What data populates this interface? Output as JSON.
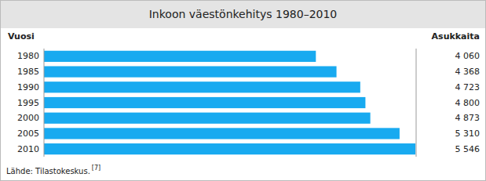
{
  "chart_data": {
    "type": "bar",
    "orientation": "horizontal",
    "title": "Inkoon väestönkehitys 1980–2010",
    "categories": [
      "1980",
      "1985",
      "1990",
      "1995",
      "2000",
      "2005",
      "2010"
    ],
    "values": [
      4060,
      4368,
      4723,
      4800,
      4873,
      5310,
      5546
    ],
    "value_labels": [
      "4 060",
      "4 368",
      "4 723",
      "4 800",
      "4 873",
      "5 310",
      "5 546"
    ],
    "color": "#18AAF0",
    "xlim": [
      0,
      5557.092
    ],
    "xticks": [],
    "ylabel": "Vuosi",
    "xlabel": "Asukkaita",
    "annotations": [
      "Lähde: Tilastokeskus.",
      "[7]"
    ],
    "data_labels": true,
    "tick_labels": "y",
    "grid": false
  }
}
